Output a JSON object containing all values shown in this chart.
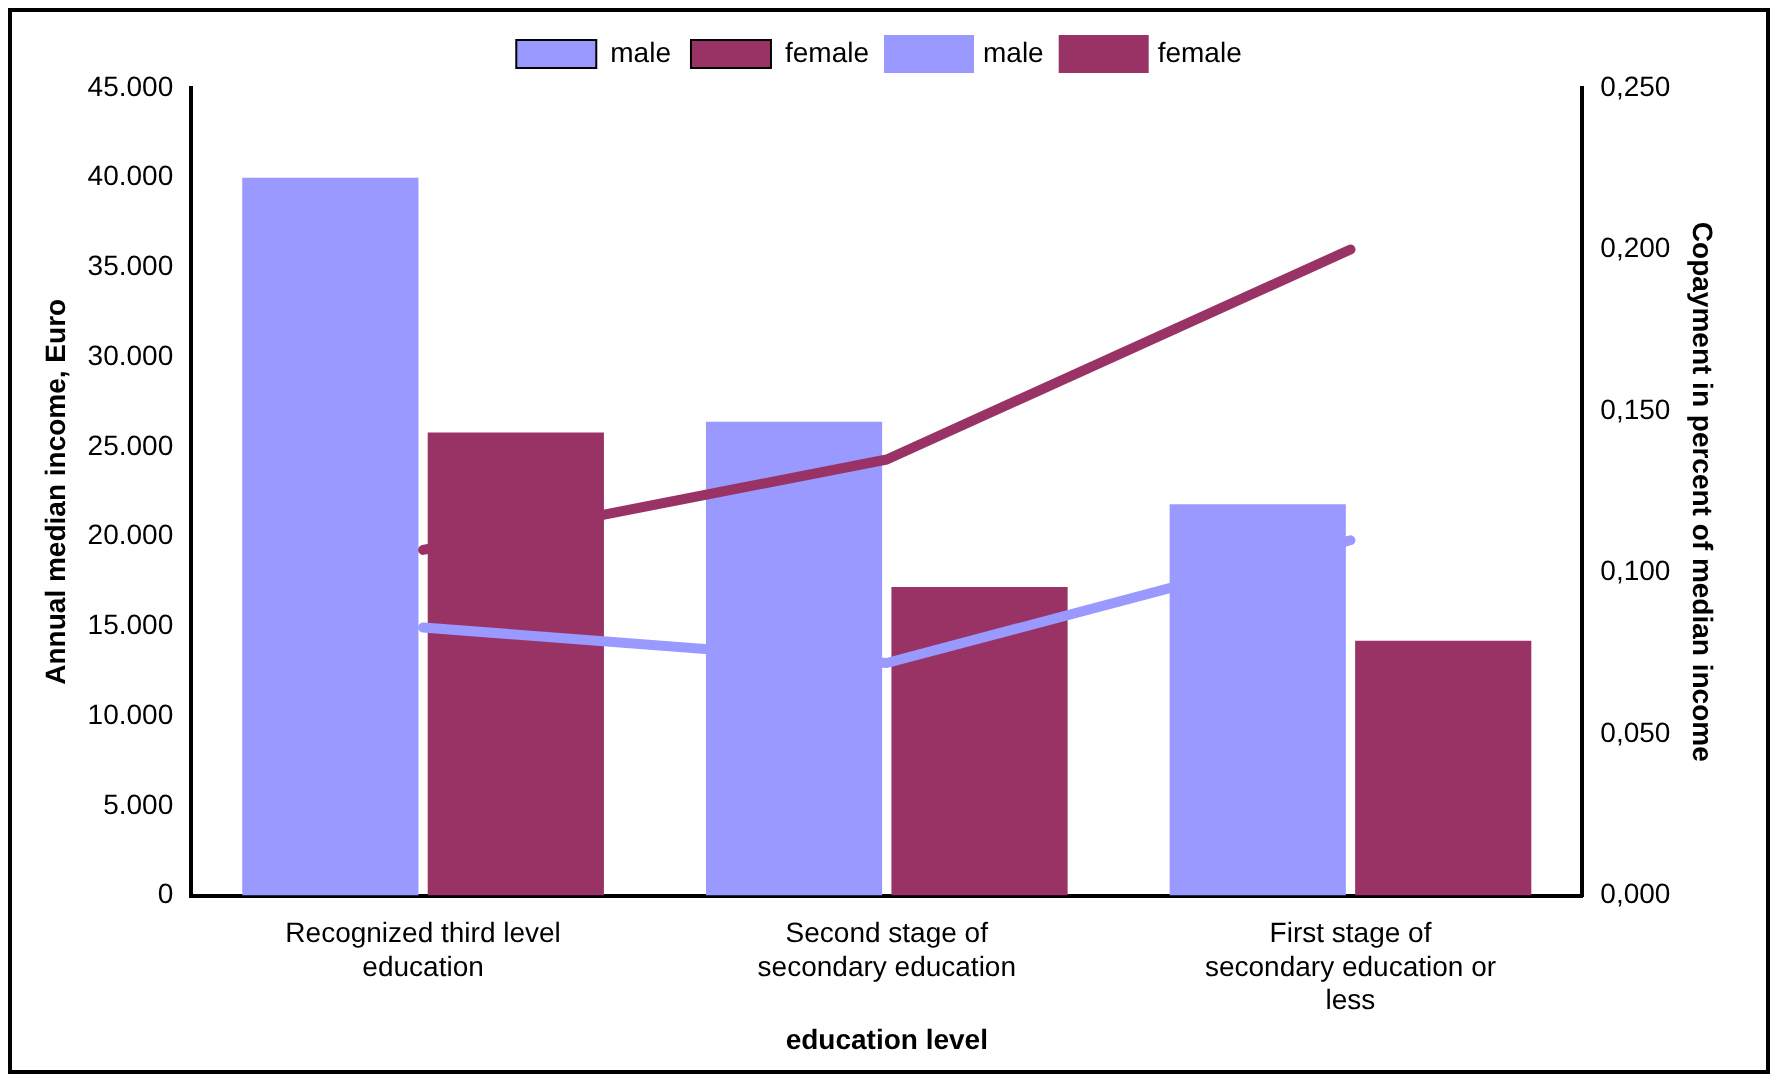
{
  "chart_data": {
    "type": "bar",
    "xlabel": "education level",
    "ylabel": "Annual median income, Euro",
    "y2label": "Copayment in percent of median income",
    "categories": [
      "Recognized third level education",
      "Second stage of secondary education",
      "First stage of secondary education or less"
    ],
    "series": [
      {
        "name": "male",
        "color": "#9999ff",
        "values": [
          40000,
          26400,
          21800
        ]
      },
      {
        "name": "female",
        "color": "#993366",
        "values": [
          25800,
          17200,
          14200
        ]
      },
      {
        "name": "male",
        "type": "line",
        "axis": "y2",
        "color": "#9999ff",
        "values": [
          0.083,
          0.072,
          0.11
        ]
      },
      {
        "name": "female",
        "type": "line",
        "axis": "y2",
        "color": "#993366",
        "values": [
          0.107,
          0.135,
          0.2
        ]
      }
    ],
    "ylim": [
      0,
      45000
    ],
    "yticks": [
      0,
      {
        "value": 5000,
        "label": "5.000"
      },
      {
        "value": 10000,
        "label": "10.000"
      },
      {
        "value": 15000,
        "label": "15.000"
      },
      {
        "value": 20000,
        "label": "20.000"
      },
      {
        "value": 25000,
        "label": "25.000"
      },
      {
        "value": 30000,
        "label": "30.000"
      },
      {
        "value": 35000,
        "label": "35.000"
      },
      {
        "value": 40000,
        "label": "40.000"
      },
      {
        "value": 45000,
        "label": "45.000"
      }
    ],
    "y2lim": [
      0,
      0.25
    ],
    "y2ticks": [
      {
        "value": 0,
        "label": "0,000"
      },
      {
        "value": 0.05,
        "label": "0,050"
      },
      {
        "value": 0.1,
        "label": "0,100"
      },
      {
        "value": 0.15,
        "label": "0,150"
      },
      {
        "value": 0.2,
        "label": "0,200"
      },
      {
        "value": 0.25,
        "label": "0,250"
      }
    ],
    "grid": false,
    "legend": "top",
    "marker": "none",
    "line_style": "solid"
  }
}
